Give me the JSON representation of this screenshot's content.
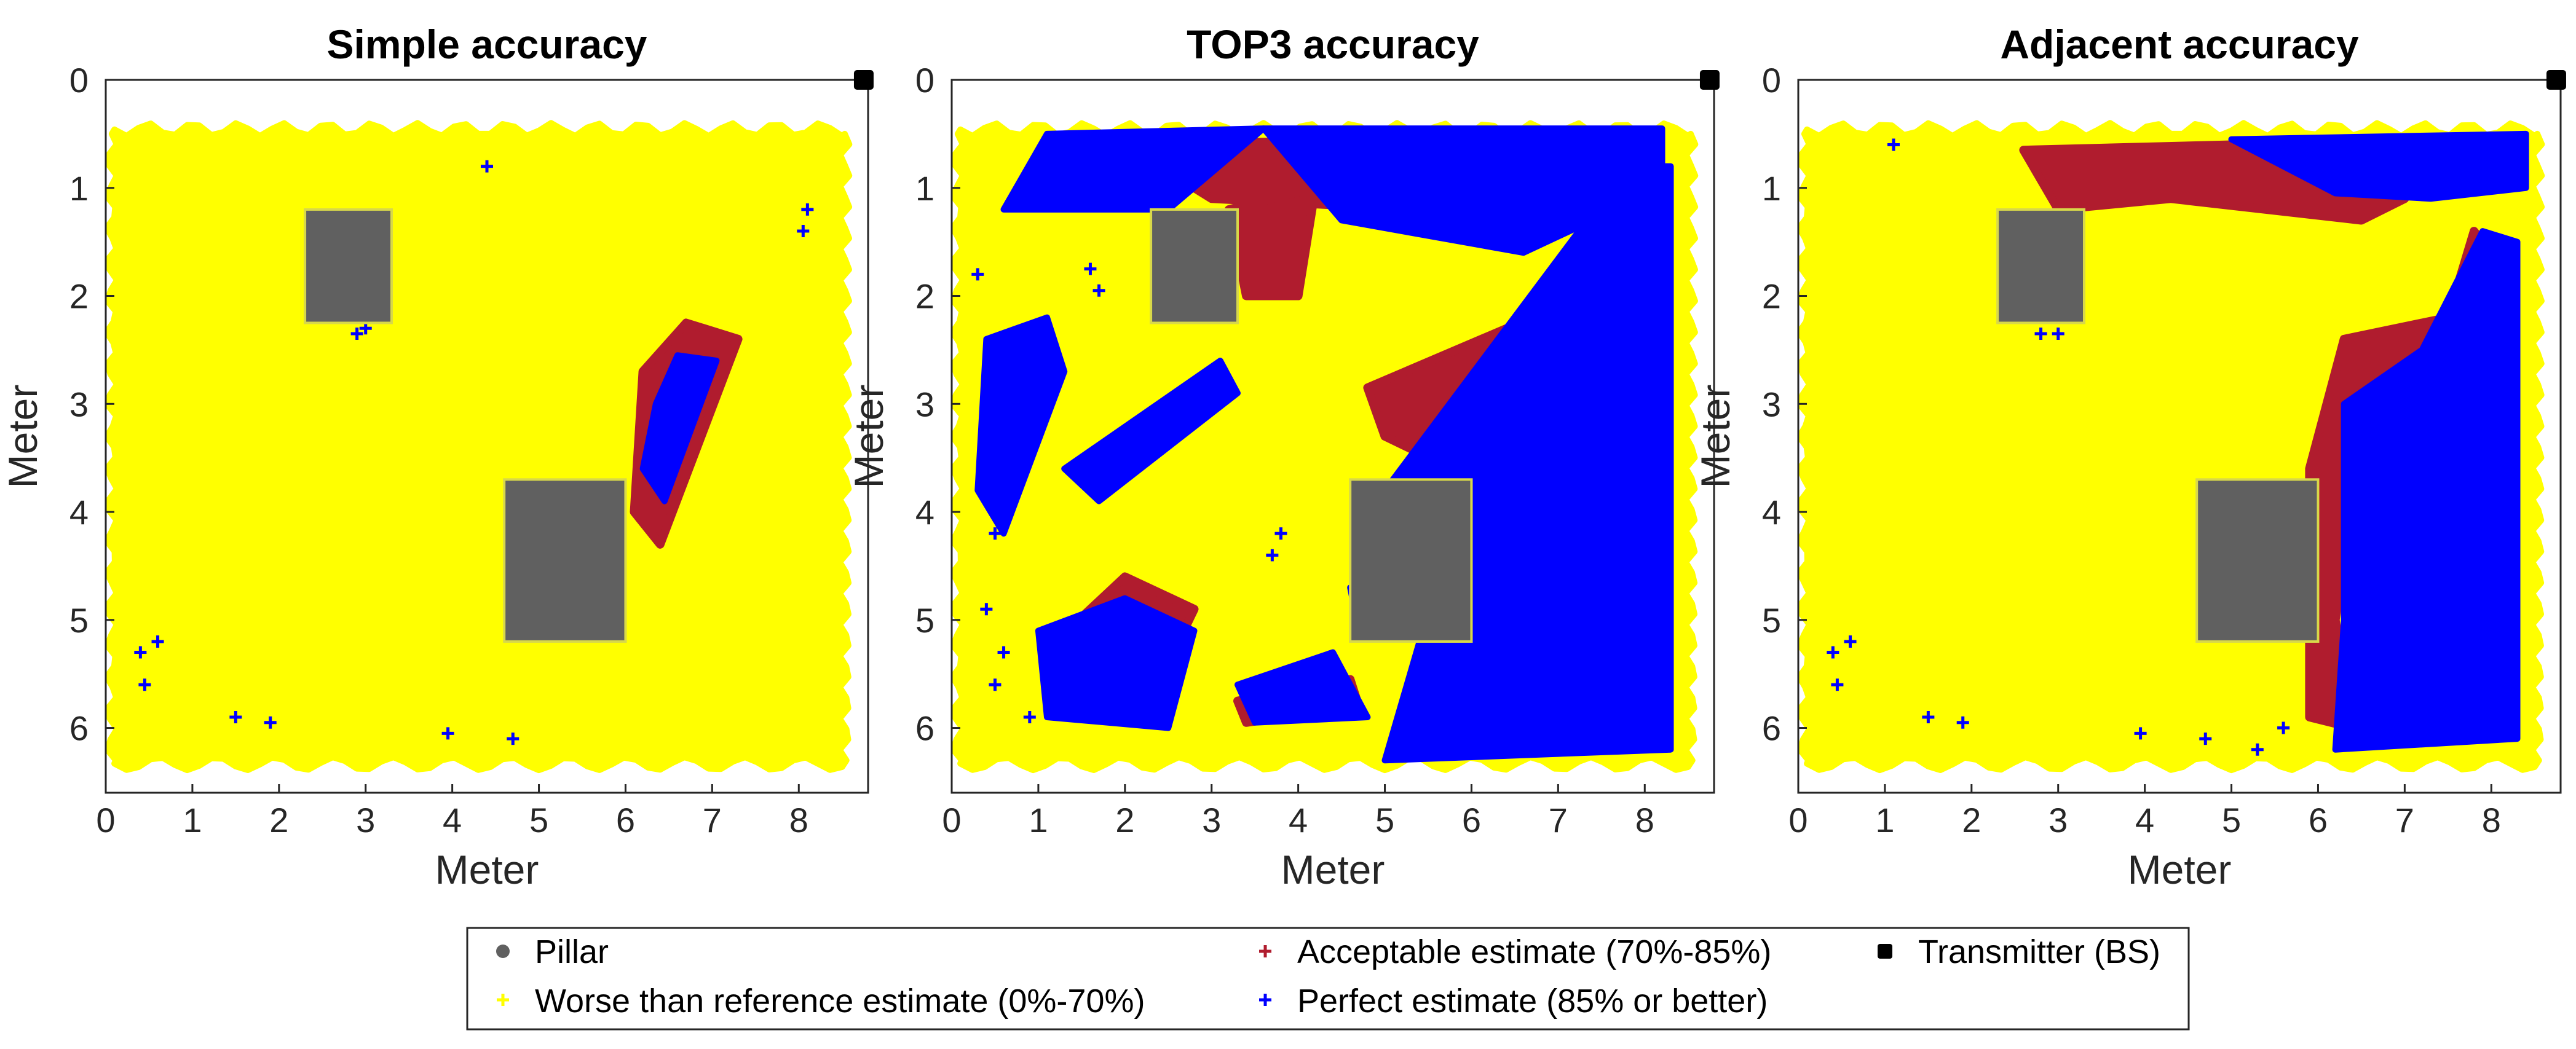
{
  "chart_data": [
    {
      "type": "scatter",
      "title": "Simple accuracy",
      "xlabel": "Meter",
      "ylabel": "Meter",
      "xlim": [
        0,
        8.8
      ],
      "ylim": [
        0,
        6.6
      ],
      "y_direction": "reversed",
      "xticks": [
        "0",
        "1",
        "2",
        "3",
        "4",
        "5",
        "6",
        "7",
        "8"
      ],
      "yticks": [
        "0",
        "1",
        "2",
        "3",
        "4",
        "5",
        "6"
      ],
      "area": {
        "x": [
          0.1,
          8.5
        ],
        "y": [
          0.5,
          6.3
        ]
      },
      "pillars": [
        {
          "x": [
            2.3,
            3.3
          ],
          "y": [
            1.2,
            2.25
          ]
        },
        {
          "x": [
            4.6,
            6.0
          ],
          "y": [
            3.7,
            5.2
          ]
        }
      ],
      "transmitter": {
        "x": 8.75,
        "y": 0.0
      },
      "acceptable_regions": [
        [
          [
            6.2,
            2.7
          ],
          [
            6.7,
            2.25
          ],
          [
            7.3,
            2.4
          ],
          [
            6.4,
            4.3
          ],
          [
            6.1,
            4.0
          ]
        ]
      ],
      "perfect_regions": [
        [
          [
            6.35,
            3.0
          ],
          [
            6.6,
            2.55
          ],
          [
            7.05,
            2.6
          ],
          [
            6.45,
            3.9
          ],
          [
            6.2,
            3.6
          ]
        ]
      ],
      "perfect_points": [
        [
          0.4,
          5.3
        ],
        [
          0.45,
          5.6
        ],
        [
          0.6,
          5.2
        ],
        [
          1.5,
          5.9
        ],
        [
          1.9,
          5.95
        ],
        [
          3.95,
          6.05
        ],
        [
          4.7,
          6.1
        ],
        [
          8.1,
          1.2
        ],
        [
          8.05,
          1.4
        ],
        [
          4.4,
          0.8
        ],
        [
          2.9,
          2.35
        ],
        [
          3.0,
          2.3
        ]
      ]
    },
    {
      "type": "scatter",
      "title": "TOP3 accuracy",
      "xlabel": "Meter",
      "ylabel": "Meter",
      "xlim": [
        0,
        8.8
      ],
      "ylim": [
        0,
        6.6
      ],
      "y_direction": "reversed",
      "xticks": [
        "0",
        "1",
        "2",
        "3",
        "4",
        "5",
        "6",
        "7",
        "8"
      ],
      "yticks": [
        "0",
        "1",
        "2",
        "3",
        "4",
        "5",
        "6"
      ],
      "area": {
        "x": [
          0.1,
          8.5
        ],
        "y": [
          0.5,
          6.3
        ]
      },
      "pillars": [
        {
          "x": [
            2.3,
            3.3
          ],
          "y": [
            1.2,
            2.25
          ]
        },
        {
          "x": [
            4.6,
            6.0
          ],
          "y": [
            3.7,
            5.2
          ]
        }
      ],
      "transmitter": {
        "x": 8.75,
        "y": 0.0
      },
      "acceptable_regions": [
        [
          [
            4.8,
            2.85
          ],
          [
            6.7,
            2.2
          ],
          [
            7.5,
            1.3
          ],
          [
            8.1,
            1.5
          ],
          [
            6.3,
            3.8
          ],
          [
            5.0,
            3.3
          ]
        ],
        [
          [
            3.3,
            5.75
          ],
          [
            4.6,
            5.55
          ],
          [
            4.7,
            5.8
          ],
          [
            3.4,
            5.95
          ]
        ],
        [
          [
            1.2,
            5.2
          ],
          [
            2.0,
            4.6
          ],
          [
            2.8,
            4.9
          ],
          [
            2.2,
            5.9
          ],
          [
            1.3,
            5.7
          ]
        ],
        [
          [
            2.0,
            0.6
          ],
          [
            5.3,
            0.55
          ],
          [
            5.4,
            1.2
          ],
          [
            3.0,
            1.1
          ]
        ],
        [
          [
            3.2,
            1.2
          ],
          [
            4.2,
            1.0
          ],
          [
            4.0,
            2.0
          ],
          [
            3.4,
            2.0
          ]
        ]
      ],
      "perfect_regions": [
        [
          [
            3.6,
            0.45
          ],
          [
            8.2,
            0.45
          ],
          [
            8.2,
            1.0
          ],
          [
            6.6,
            1.6
          ],
          [
            4.5,
            1.3
          ]
        ],
        [
          [
            5.0,
            3.8
          ],
          [
            7.8,
            0.8
          ],
          [
            8.3,
            0.8
          ],
          [
            8.3,
            6.2
          ],
          [
            5.0,
            6.3
          ],
          [
            5.4,
            5.2
          ]
        ],
        [
          [
            3.3,
            5.6
          ],
          [
            4.4,
            5.3
          ],
          [
            4.8,
            5.9
          ],
          [
            3.5,
            5.95
          ]
        ],
        [
          [
            1.0,
            5.1
          ],
          [
            2.0,
            4.8
          ],
          [
            2.8,
            5.1
          ],
          [
            2.5,
            6.0
          ],
          [
            1.1,
            5.9
          ]
        ],
        [
          [
            1.3,
            3.6
          ],
          [
            3.1,
            2.6
          ],
          [
            3.3,
            2.9
          ],
          [
            1.7,
            3.9
          ]
        ],
        [
          [
            0.4,
            2.4
          ],
          [
            1.1,
            2.2
          ],
          [
            1.3,
            2.7
          ],
          [
            0.6,
            4.2
          ],
          [
            0.3,
            3.8
          ]
        ],
        [
          [
            0.6,
            1.2
          ],
          [
            1.1,
            0.5
          ],
          [
            3.6,
            0.45
          ],
          [
            2.5,
            1.2
          ]
        ],
        [
          [
            4.6,
            4.7
          ],
          [
            5.0,
            4.6
          ],
          [
            5.1,
            5.0
          ],
          [
            4.7,
            5.1
          ]
        ]
      ],
      "perfect_points": [
        [
          0.5,
          4.2
        ],
        [
          0.4,
          4.9
        ],
        [
          0.6,
          5.3
        ],
        [
          0.5,
          5.6
        ],
        [
          0.9,
          5.9
        ],
        [
          1.7,
          1.95
        ],
        [
          0.3,
          1.8
        ],
        [
          3.7,
          4.4
        ],
        [
          3.8,
          4.2
        ],
        [
          1.6,
          1.75
        ]
      ]
    },
    {
      "type": "scatter",
      "title": "Adjacent accuracy",
      "xlabel": "Meter",
      "ylabel": "Meter",
      "xlim": [
        0,
        8.8
      ],
      "ylim": [
        0,
        6.6
      ],
      "y_direction": "reversed",
      "xticks": [
        "0",
        "1",
        "2",
        "3",
        "4",
        "5",
        "6",
        "7",
        "8"
      ],
      "yticks": [
        "0",
        "1",
        "2",
        "3",
        "4",
        "5",
        "6"
      ],
      "area": {
        "x": [
          0.1,
          8.5
        ],
        "y": [
          0.5,
          6.3
        ]
      },
      "pillars": [
        {
          "x": [
            2.3,
            3.3
          ],
          "y": [
            1.2,
            2.25
          ]
        },
        {
          "x": [
            4.6,
            6.0
          ],
          "y": [
            3.7,
            5.2
          ]
        }
      ],
      "transmitter": {
        "x": 8.75,
        "y": 0.0
      },
      "acceptable_regions": [
        [
          [
            5.9,
            3.6
          ],
          [
            6.3,
            2.4
          ],
          [
            7.5,
            2.2
          ],
          [
            7.8,
            1.4
          ],
          [
            8.1,
            1.7
          ],
          [
            8.1,
            2.4
          ],
          [
            6.6,
            3.0
          ],
          [
            6.2,
            5.0
          ],
          [
            6.4,
            6.0
          ],
          [
            5.9,
            5.9
          ]
        ],
        [
          [
            2.6,
            0.65
          ],
          [
            5.0,
            0.6
          ],
          [
            7.0,
            1.1
          ],
          [
            6.5,
            1.3
          ],
          [
            4.3,
            1.1
          ],
          [
            3.0,
            1.2
          ]
        ]
      ],
      "perfect_regions": [
        [
          [
            6.3,
            3.0
          ],
          [
            7.2,
            2.5
          ],
          [
            7.9,
            1.4
          ],
          [
            8.3,
            1.5
          ],
          [
            8.3,
            6.1
          ],
          [
            6.2,
            6.2
          ],
          [
            6.3,
            5.0
          ]
        ],
        [
          [
            5.0,
            0.55
          ],
          [
            8.4,
            0.5
          ],
          [
            8.4,
            1.0
          ],
          [
            7.3,
            1.1
          ],
          [
            6.2,
            1.05
          ]
        ]
      ],
      "perfect_points": [
        [
          0.4,
          5.3
        ],
        [
          0.45,
          5.6
        ],
        [
          0.6,
          5.2
        ],
        [
          1.5,
          5.9
        ],
        [
          1.9,
          5.95
        ],
        [
          3.95,
          6.05
        ],
        [
          4.7,
          6.1
        ],
        [
          3.0,
          2.35
        ],
        [
          2.8,
          2.35
        ],
        [
          1.1,
          0.6
        ],
        [
          5.3,
          6.2
        ],
        [
          5.6,
          6.0
        ]
      ]
    }
  ],
  "legend": {
    "location": "bottom",
    "items": [
      {
        "label": "Pillar",
        "marker": "dot",
        "color": "#606060"
      },
      {
        "label": "Worse than reference estimate (0%-70%)",
        "marker": "plus",
        "color": "#ffff00"
      },
      {
        "label": "Acceptable estimate (70%-85%)",
        "marker": "plus",
        "color": "#b01c2e"
      },
      {
        "label": "Perfect estimate (85% or better)",
        "marker": "plus",
        "color": "#0000ff"
      },
      {
        "label": "Transmitter (BS)",
        "marker": "square",
        "color": "#000000"
      }
    ]
  },
  "colors": {
    "worse": "#ffff00",
    "acceptable": "#b01c2e",
    "perfect": "#0000ff",
    "pillar": "#606060",
    "transmitter": "#000000",
    "axes": "#262626"
  }
}
